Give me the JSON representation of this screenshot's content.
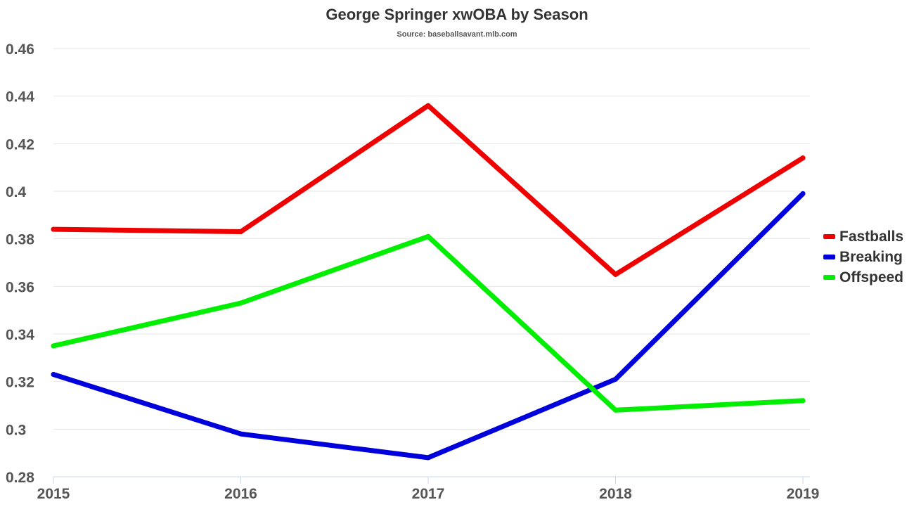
{
  "chart_data": {
    "type": "line",
    "title": "George Springer xwOBA by Season",
    "subtitle": "Source: baseballsavant.mlb.com",
    "xlabel": "",
    "ylabel": "",
    "x": [
      "2015",
      "2016",
      "2017",
      "2018",
      "2019"
    ],
    "ylim": [
      0.28,
      0.46
    ],
    "yticks": [
      0.28,
      0.3,
      0.32,
      0.34,
      0.36,
      0.38,
      0.4,
      0.42,
      0.44,
      0.46
    ],
    "ytick_labels": [
      "0.28",
      "0.3",
      "0.32",
      "0.34",
      "0.36",
      "0.38",
      "0.4",
      "0.42",
      "0.44",
      "0.46"
    ],
    "grid": true,
    "legend_position": "right",
    "series": [
      {
        "name": "Fastballs",
        "color": "#ee0000",
        "values": [
          0.384,
          0.383,
          0.436,
          0.365,
          0.414
        ]
      },
      {
        "name": "Breaking",
        "color": "#0000dd",
        "values": [
          0.323,
          0.298,
          0.288,
          0.321,
          0.399
        ]
      },
      {
        "name": "Offspeed",
        "color": "#00ee00",
        "values": [
          0.335,
          0.353,
          0.381,
          0.308,
          0.312
        ]
      }
    ]
  }
}
